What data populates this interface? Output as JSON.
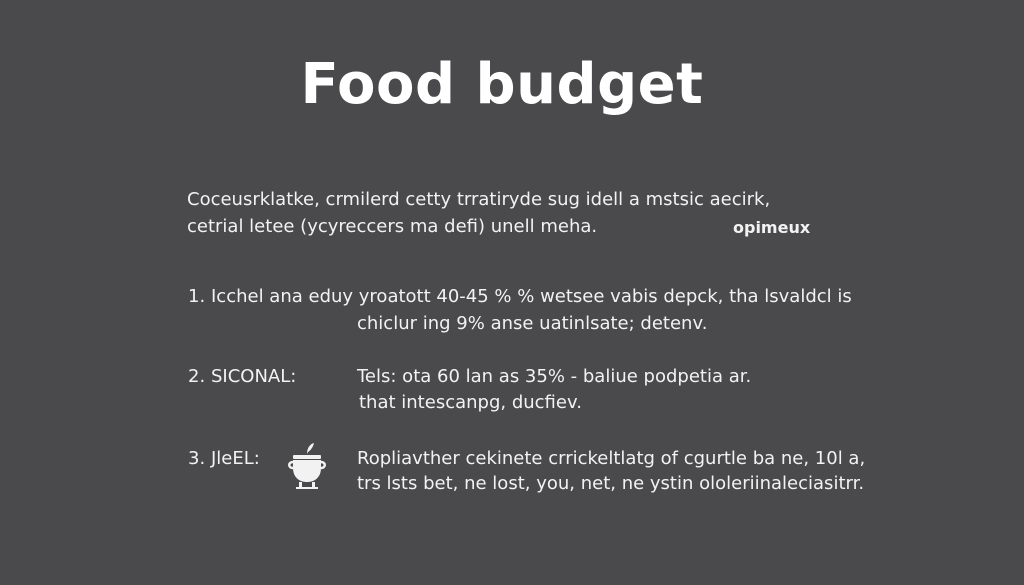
{
  "title": "Food budget",
  "intro": {
    "line1": "Coceusrklatke, crmilerd cetty trratiryde sug idell a mstsic aecirk,",
    "line2": "cetrial letee (ycyreccers ma defi) unell meha.",
    "tag": "opimeux"
  },
  "items": [
    {
      "number": "1.",
      "line1": "Icchel ana eduy yroatott 40-45 % % wetsee vabis depck, tha lsvaldcl is",
      "line2": "chiclur ing 9% anse uatinlsate; detenv."
    },
    {
      "number": "2.",
      "label": "SICONAL:",
      "line1": "Tels: ota 60 lan as 35% - baliue podpetia ar.",
      "line2": "that intescanpg, ducfiev."
    },
    {
      "number": "3.",
      "label": "JleEL:",
      "icon": "cooking-pot-icon",
      "line1": "Ropliavther cekinete crrickeltlatg of cgurtle ba ne, 10l a,",
      "line2": "trs lsts bet, ne lost, you, net, ne ystin ololeriinaleciasitrr."
    }
  ]
}
